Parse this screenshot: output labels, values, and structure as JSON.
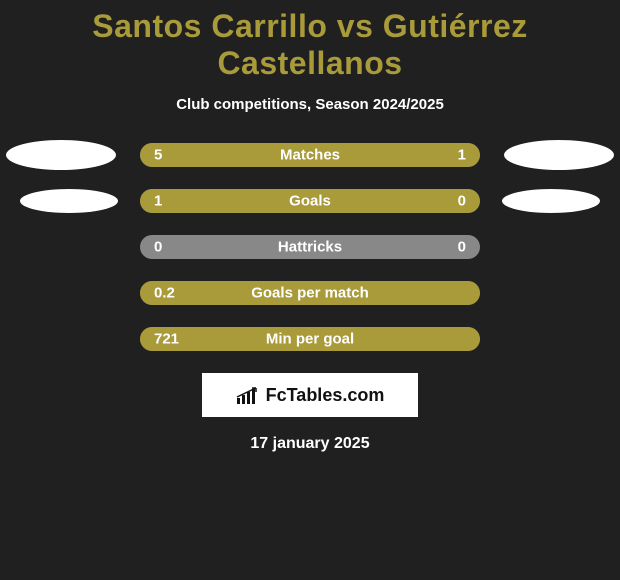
{
  "title": "Santos Carrillo vs Gutiérrez Castellanos",
  "subtitle": "Club competitions, Season 2024/2025",
  "date": "17 january 2025",
  "logo_text": "FcTables.com",
  "colors": {
    "background": "#202020",
    "accent": "#a99a3a",
    "bar_empty": "#888888",
    "oval": "#ffffff",
    "text": "#ffffff"
  },
  "rows": [
    {
      "label": "Matches",
      "left_val": "5",
      "right_val": "1",
      "left_pct": 78,
      "right_pct": 22,
      "show_ovals": true,
      "halves": true
    },
    {
      "label": "Goals",
      "left_val": "1",
      "right_val": "0",
      "left_pct": 78,
      "right_pct": 22,
      "show_ovals": true,
      "oval_small": true,
      "halves": true
    },
    {
      "label": "Hattricks",
      "left_val": "0",
      "right_val": "0",
      "left_pct": 0,
      "right_pct": 0,
      "show_ovals": false,
      "halves": false,
      "all_empty": true
    },
    {
      "label": "Goals per match",
      "left_val": "0.2",
      "right_val": "",
      "left_pct": 100,
      "right_pct": 0,
      "show_ovals": false,
      "halves": false,
      "all_full": true
    },
    {
      "label": "Min per goal",
      "left_val": "721",
      "right_val": "",
      "left_pct": 100,
      "right_pct": 0,
      "show_ovals": false,
      "halves": false,
      "all_full": true
    }
  ]
}
